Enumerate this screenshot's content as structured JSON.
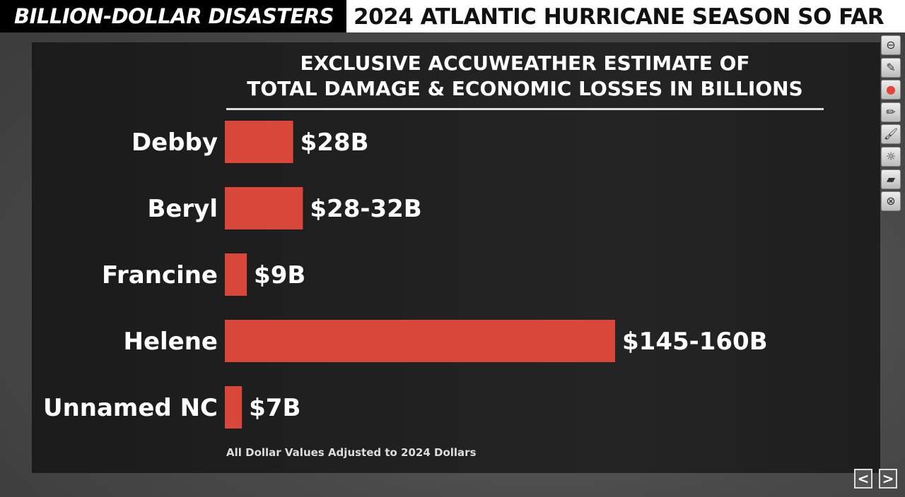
{
  "banner": {
    "left": "BILLION-DOLLAR DISASTERS",
    "right": "2024 ATLANTIC HURRICANE SEASON SO FAR"
  },
  "footnote": "All Dollar Values Adjusted to 2024 Dollars",
  "toolbar": [
    "minus-circle-icon",
    "highlighter-icon",
    "color-wheel-icon",
    "pen-icon",
    "brush-icon",
    "brightness-icon",
    "eraser-icon",
    "close-circle-icon"
  ],
  "nav": {
    "prev": "<",
    "next": ">"
  },
  "chart_data": {
    "type": "bar",
    "orientation": "horizontal",
    "title": "EXCLUSIVE ACCUWEATHER ESTIMATE OF",
    "subtitle": "TOTAL DAMAGE & ECONOMIC LOSSES IN BILLIONS",
    "categories": [
      "Debby",
      "Beryl",
      "Francine",
      "Helene",
      "Unnamed NC"
    ],
    "values": [
      28,
      32,
      9,
      160,
      7
    ],
    "value_labels": [
      "$28B",
      "$28-32B",
      "$9B",
      "$145-160B",
      "$7B"
    ],
    "unit": "billions USD",
    "xlim": [
      0,
      160
    ],
    "grid": false,
    "bar_color": "#d8473a"
  }
}
